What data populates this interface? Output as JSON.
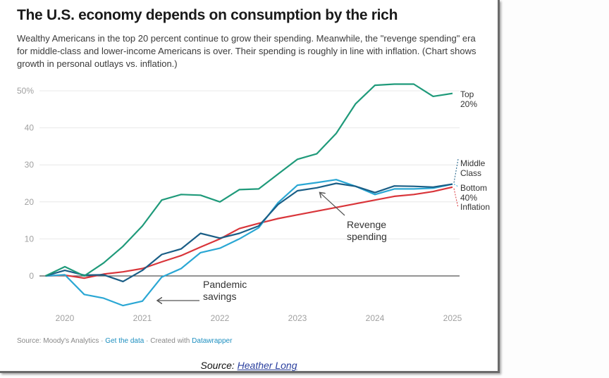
{
  "header": {
    "title": "The U.S. economy depends on consumption by the rich",
    "subtitle": "Wealthy Americans in the top 20 percent continue to grow their spending. Meanwhile, the \"revenge spending\" era for middle-class and lower-income Americans is over. Their spending is roughly in line with inflation. (Chart shows growth in personal outlays vs. inflation.)"
  },
  "footer": {
    "source_prefix": "Source: Moody's Analytics · ",
    "get_data": "Get the data",
    "created_with": " · Created with ",
    "datawrapper": "Datawrapper"
  },
  "source_line": {
    "prefix": "Source: ",
    "author": "Heather Long"
  },
  "colors": {
    "top20": "#1f9a7a",
    "middle": "#1a5e86",
    "bottom40": "#2aa7d4",
    "inflation": "#d9353a",
    "grid": "#e8e8e8",
    "zero": "#555555",
    "arrow": "#555555"
  },
  "chart_data": {
    "type": "line",
    "title": "The U.S. economy depends on consumption by the rich",
    "xlabel": "",
    "ylabel": "",
    "ylim": [
      -9,
      50
    ],
    "xlim": [
      2019.75,
      2025.0
    ],
    "y_ticks": [
      0,
      10,
      20,
      30,
      40,
      50
    ],
    "y_tick_labels": [
      "0",
      "10",
      "20",
      "30",
      "40",
      "50%"
    ],
    "x_ticks": [
      2020,
      2021,
      2022,
      2023,
      2024,
      2025
    ],
    "x_tick_labels": [
      "2020",
      "2021",
      "2022",
      "2023",
      "2024",
      "2025"
    ],
    "grid": true,
    "legend": "right (direct line labels)",
    "x": [
      2019.75,
      2020.0,
      2020.25,
      2020.5,
      2020.75,
      2021.0,
      2021.25,
      2021.5,
      2021.75,
      2022.0,
      2022.25,
      2022.5,
      2022.75,
      2023.0,
      2023.25,
      2023.5,
      2023.75,
      2024.0,
      2024.25,
      2024.5,
      2024.75,
      2025.0
    ],
    "series": [
      {
        "name": "Top 20%",
        "key": "top20",
        "label_lines": [
          "Top",
          "20%"
        ],
        "values": [
          0,
          2.5,
          0,
          3.5,
          8,
          13.5,
          20.5,
          22,
          21.8,
          20,
          23.3,
          23.5,
          27.5,
          31.5,
          33,
          38.5,
          46.5,
          51.5,
          51.8,
          51.8,
          48.5,
          49.3
        ]
      },
      {
        "name": "Middle Class",
        "key": "middle",
        "label_lines": [
          "Middle",
          "Class"
        ],
        "values": [
          0,
          1.5,
          0.2,
          0.3,
          -1.5,
          1.5,
          5.8,
          7.3,
          11.5,
          10.2,
          11.5,
          13.5,
          19.3,
          23,
          23.8,
          25,
          24.2,
          22.5,
          24.3,
          24.2,
          24,
          24.8
        ]
      },
      {
        "name": "Bottom 40%",
        "key": "bottom40",
        "label_lines": [
          "Bottom",
          "40%"
        ],
        "values": [
          0,
          0.3,
          -5,
          -6,
          -8,
          -6.8,
          -0.3,
          2,
          6.3,
          7.5,
          10,
          13,
          19.8,
          24.5,
          25.2,
          26,
          24.2,
          22,
          23.5,
          23.5,
          23.7,
          24.8
        ]
      },
      {
        "name": "Inflation",
        "key": "inflation",
        "label_lines": [
          "Inflation"
        ],
        "values": [
          0,
          0.2,
          -0.6,
          0.5,
          1.1,
          2,
          3.8,
          5.5,
          7.8,
          10,
          12.8,
          14.2,
          15.5,
          16.5,
          17.5,
          18.5,
          19.5,
          20.5,
          21.5,
          22,
          22.8,
          24
        ]
      }
    ],
    "annotations": [
      {
        "name": "pandemic-savings",
        "lines": [
          "Pandemic",
          "savings"
        ],
        "arrow_to": {
          "x": 2021.1,
          "y": -6.8
        }
      },
      {
        "name": "revenge-spending",
        "lines": [
          "Revenge",
          "spending"
        ],
        "arrow_to": {
          "x": 2023.25,
          "y": 23.5
        }
      }
    ]
  }
}
